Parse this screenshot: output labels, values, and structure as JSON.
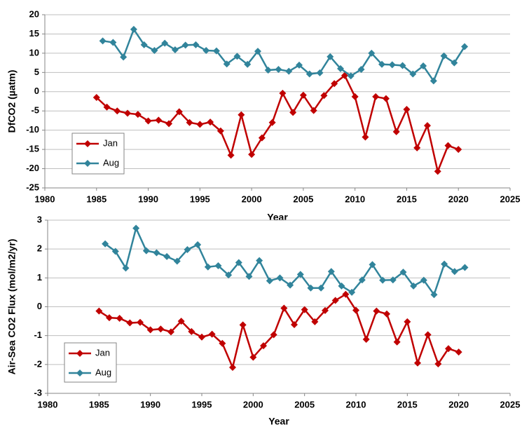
{
  "chart_data": [
    {
      "type": "line",
      "ylabel": "DfCO2 (µatm)",
      "xlabel": "Year",
      "xlim": [
        1980,
        2025
      ],
      "xticks": [
        1980,
        1985,
        1990,
        1995,
        2000,
        2005,
        2010,
        2015,
        2020,
        2025
      ],
      "ylim": [
        -25,
        20
      ],
      "yticks": [
        -25,
        -20,
        -15,
        -10,
        -5,
        0,
        5,
        10,
        15,
        20
      ],
      "grid": true,
      "legend": "lower left",
      "series": [
        {
          "name": "Jan",
          "color": "#c00000",
          "x": [
            1985,
            1986,
            1987,
            1988,
            1989,
            1990,
            1991,
            1992,
            1993,
            1994,
            1995,
            1996,
            1997,
            1998,
            1999,
            2000,
            2001,
            2002,
            2003,
            2004,
            2005,
            2006,
            2007,
            2008,
            2009,
            2010,
            2011,
            2012,
            2013,
            2014,
            2015,
            2016,
            2017,
            2018,
            2019,
            2020
          ],
          "values": [
            -1.5,
            -4,
            -5,
            -5.6,
            -5.9,
            -7.6,
            -7.4,
            -8.3,
            -5.2,
            -8,
            -8.5,
            -7.9,
            -10.2,
            -16.5,
            -6,
            -16.3,
            -12,
            -8,
            -0.4,
            -5.4,
            -0.9,
            -4.9,
            -1,
            2.1,
            4.2,
            -1.3,
            -11.8,
            -1.3,
            -1.8,
            -10.4,
            -4.6,
            -14.6,
            -8.8,
            -20.7,
            -14,
            -15
          ]
        },
        {
          "name": "Aug",
          "color": "#31849b",
          "x": [
            1985.6,
            1986.6,
            1987.6,
            1988.6,
            1989.6,
            1990.6,
            1991.6,
            1992.6,
            1993.6,
            1994.6,
            1995.6,
            1996.6,
            1997.6,
            1998.6,
            1999.6,
            2000.6,
            2001.6,
            2002.6,
            2003.6,
            2004.6,
            2005.6,
            2006.6,
            2007.6,
            2008.6,
            2009.6,
            2010.6,
            2011.6,
            2012.6,
            2013.6,
            2014.6,
            2015.6,
            2016.6,
            2017.6,
            2018.6,
            2019.6,
            2020.6
          ],
          "values": [
            13.2,
            12.8,
            9,
            16.2,
            12.2,
            10.7,
            12.6,
            10.9,
            12.1,
            12.2,
            10.7,
            10.6,
            7.2,
            9.2,
            7.1,
            10.5,
            5.6,
            5.8,
            5.3,
            6.9,
            4.6,
            4.9,
            9.1,
            6,
            4.1,
            5.8,
            10,
            7.1,
            7,
            6.8,
            4.6,
            6.7,
            2.8,
            9.3,
            7.5,
            11.7
          ]
        }
      ]
    },
    {
      "type": "line",
      "ylabel": "Air-Sea CO2 Flux (mol/m2/yr)",
      "xlabel": "Year",
      "xlim": [
        1980,
        2025
      ],
      "xticks": [
        1980,
        1985,
        1990,
        1995,
        2000,
        2005,
        2010,
        2015,
        2020,
        2025
      ],
      "ylim": [
        -3,
        3
      ],
      "yticks": [
        -3,
        -2,
        -1,
        0,
        1,
        2,
        3
      ],
      "grid": true,
      "legend": "lower left",
      "series": [
        {
          "name": "Jan",
          "color": "#c00000",
          "x": [
            1985,
            1986,
            1987,
            1988,
            1989,
            1990,
            1991,
            1992,
            1993,
            1994,
            1995,
            1996,
            1997,
            1998,
            1999,
            2000,
            2001,
            2002,
            2003,
            2004,
            2005,
            2006,
            2007,
            2008,
            2009,
            2010,
            2011,
            2012,
            2013,
            2014,
            2015,
            2016,
            2017,
            2018,
            2019,
            2020
          ],
          "values": [
            -0.15,
            -0.38,
            -0.4,
            -0.56,
            -0.54,
            -0.8,
            -0.77,
            -0.87,
            -0.5,
            -0.86,
            -1.05,
            -0.95,
            -1.27,
            -2.1,
            -0.63,
            -1.75,
            -1.35,
            -0.97,
            -0.05,
            -0.62,
            -0.1,
            -0.52,
            -0.13,
            0.22,
            0.43,
            -0.12,
            -1.13,
            -0.15,
            -0.25,
            -1.22,
            -0.52,
            -1.95,
            -0.97,
            -1.98,
            -1.45,
            -1.57
          ]
        },
        {
          "name": "Aug",
          "color": "#31849b",
          "x": [
            1985.6,
            1986.6,
            1987.6,
            1988.6,
            1989.6,
            1990.6,
            1991.6,
            1992.6,
            1993.6,
            1994.6,
            1995.6,
            1996.6,
            1997.6,
            1998.6,
            1999.6,
            2000.6,
            2001.6,
            2002.6,
            2003.6,
            2004.6,
            2005.6,
            2006.6,
            2007.6,
            2008.6,
            2009.6,
            2010.6,
            2011.6,
            2012.6,
            2013.6,
            2014.6,
            2015.6,
            2016.6,
            2017.6,
            2018.6,
            2019.6,
            2020.6
          ],
          "values": [
            2.18,
            1.92,
            1.34,
            2.72,
            1.94,
            1.87,
            1.74,
            1.58,
            1.98,
            2.15,
            1.38,
            1.42,
            1.1,
            1.53,
            1.05,
            1.6,
            0.9,
            1.0,
            0.75,
            1.12,
            0.65,
            0.65,
            1.22,
            0.72,
            0.5,
            0.93,
            1.46,
            0.92,
            0.93,
            1.2,
            0.72,
            0.92,
            0.42,
            1.48,
            1.22,
            1.36
          ]
        }
      ]
    }
  ]
}
